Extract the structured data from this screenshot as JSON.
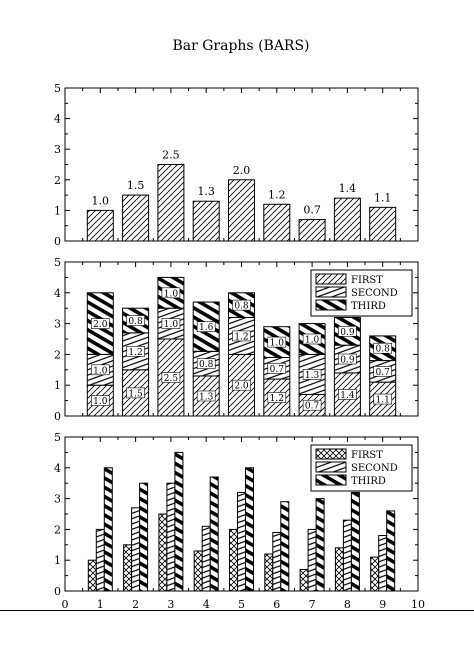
{
  "chart_data": [
    {
      "type": "bar",
      "title": "Bar Graphs (BARS)",
      "x": [
        1,
        2,
        3,
        4,
        5,
        6,
        7,
        8,
        9
      ],
      "values": [
        1.0,
        1.5,
        2.5,
        1.3,
        2.0,
        1.2,
        0.7,
        1.4,
        1.1
      ],
      "value_labels": [
        "1.0",
        "1.5",
        "2.5",
        "1.3",
        "2.0",
        "1.2",
        "0.7",
        "1.4",
        "1.1"
      ],
      "ylim": [
        0,
        5
      ],
      "yticks": [
        "0",
        "1",
        "2",
        "3",
        "4",
        "5"
      ],
      "grid": false,
      "pattern": "diagonal hatch"
    },
    {
      "type": "bar",
      "mode": "stacked",
      "x": [
        1,
        2,
        3,
        4,
        5,
        6,
        7,
        8,
        9
      ],
      "series": [
        {
          "name": "FIRST",
          "values": [
            1.0,
            1.5,
            2.5,
            1.3,
            2.0,
            1.2,
            0.7,
            1.4,
            1.1
          ],
          "labels": [
            "1.0",
            "1.5",
            "2.5",
            "1.3",
            "2.0",
            "1.2",
            "0.7",
            "1.4",
            "1.1"
          ]
        },
        {
          "name": "SECOND",
          "values": [
            1.0,
            1.2,
            1.0,
            0.8,
            1.2,
            0.7,
            1.3,
            0.9,
            0.7
          ],
          "labels": [
            "1.0",
            "1.2",
            "1.0",
            "0.8",
            "1.2",
            "0.7",
            "1.3",
            "0.9",
            "0.7"
          ]
        },
        {
          "name": "THIRD",
          "values": [
            2.0,
            0.8,
            1.0,
            1.6,
            0.8,
            1.0,
            1.0,
            0.9,
            0.8
          ],
          "labels": [
            "2.0",
            "0.8",
            "1.0",
            "1.6",
            "0.8",
            "1.0",
            "1.0",
            "0.9",
            "0.8"
          ]
        }
      ],
      "ylim": [
        0,
        5
      ],
      "yticks": [
        "0",
        "1",
        "2",
        "3",
        "4",
        "5"
      ],
      "legend": "top-right",
      "grid": false
    },
    {
      "type": "bar",
      "mode": "grouped",
      "x": [
        1,
        2,
        3,
        4,
        5,
        6,
        7,
        8,
        9
      ],
      "series": [
        {
          "name": "FIRST",
          "values": [
            1.0,
            1.5,
            2.5,
            1.3,
            2.0,
            1.2,
            0.7,
            1.4,
            1.1
          ]
        },
        {
          "name": "SECOND",
          "values": [
            2.0,
            2.7,
            3.5,
            2.1,
            3.2,
            1.9,
            2.0,
            2.3,
            1.8
          ]
        },
        {
          "name": "THIRD",
          "values": [
            4.0,
            3.5,
            4.5,
            3.7,
            4.0,
            2.9,
            3.0,
            3.2,
            2.6
          ]
        }
      ],
      "xlim": [
        0,
        10
      ],
      "xticks": [
        "0",
        "1",
        "2",
        "3",
        "4",
        "5",
        "6",
        "7",
        "8",
        "9",
        "10"
      ],
      "ylim": [
        0,
        5
      ],
      "yticks": [
        "0",
        "1",
        "2",
        "3",
        "4",
        "5"
      ],
      "legend": "top-right",
      "grid": false
    }
  ],
  "style": {
    "ink": "#000000",
    "background": "#ffffff",
    "patterns": {
      "FIRST": "light diagonal hatch / crosshatch",
      "SECOND": "medium diagonal hatch",
      "THIRD": "heavy diagonal hatch"
    }
  }
}
